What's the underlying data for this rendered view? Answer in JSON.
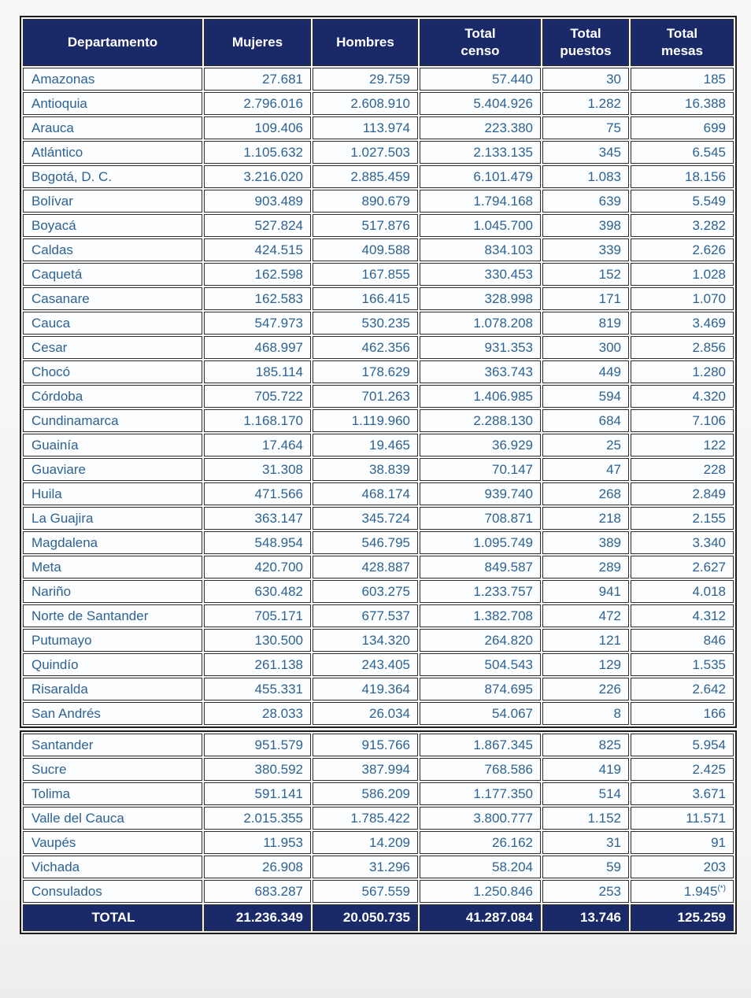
{
  "colors": {
    "header_bg": "#1a2a68",
    "header_text": "#ffffff",
    "cell_text": "#2d6292",
    "cell_bg": "#fbfdfe",
    "grid_line": "#2e2e2e",
    "outer_border": "#1d1d1d",
    "total_bg": "#1a2a68",
    "total_text": "#ffffff",
    "page_bg": "#f4f4f2"
  },
  "table": {
    "columns": [
      "Departamento",
      "Mujeres",
      "Hombres",
      "Total\ncenso",
      "Total\npuestos",
      "Total\nmesas"
    ],
    "footnote_marker": "(*)",
    "sections": [
      {
        "rows": [
          [
            "Amazonas",
            "27.681",
            "29.759",
            "57.440",
            "30",
            "185"
          ],
          [
            "Antioquia",
            "2.796.016",
            "2.608.910",
            "5.404.926",
            "1.282",
            "16.388"
          ],
          [
            "Arauca",
            "109.406",
            "113.974",
            "223.380",
            "75",
            "699"
          ],
          [
            "Atlántico",
            "1.105.632",
            "1.027.503",
            "2.133.135",
            "345",
            "6.545"
          ],
          [
            "Bogotá, D. C.",
            "3.216.020",
            "2.885.459",
            "6.101.479",
            "1.083",
            "18.156"
          ],
          [
            "Bolívar",
            "903.489",
            "890.679",
            "1.794.168",
            "639",
            "5.549"
          ],
          [
            "Boyacá",
            "527.824",
            "517.876",
            "1.045.700",
            "398",
            "3.282"
          ],
          [
            "Caldas",
            "424.515",
            "409.588",
            "834.103",
            "339",
            "2.626"
          ],
          [
            "Caquetá",
            "162.598",
            "167.855",
            "330.453",
            "152",
            "1.028"
          ],
          [
            "Casanare",
            "162.583",
            "166.415",
            "328.998",
            "171",
            "1.070"
          ],
          [
            "Cauca",
            "547.973",
            "530.235",
            "1.078.208",
            "819",
            "3.469"
          ],
          [
            "Cesar",
            "468.997",
            "462.356",
            "931.353",
            "300",
            "2.856"
          ],
          [
            "Chocó",
            "185.114",
            "178.629",
            "363.743",
            "449",
            "1.280"
          ],
          [
            "Córdoba",
            "705.722",
            "701.263",
            "1.406.985",
            "594",
            "4.320"
          ],
          [
            "Cundinamarca",
            "1.168.170",
            "1.119.960",
            "2.288.130",
            "684",
            "7.106"
          ],
          [
            "Guainía",
            "17.464",
            "19.465",
            "36.929",
            "25",
            "122"
          ],
          [
            "Guaviare",
            "31.308",
            "38.839",
            "70.147",
            "47",
            "228"
          ],
          [
            "Huila",
            "471.566",
            "468.174",
            "939.740",
            "268",
            "2.849"
          ],
          [
            "La Guajira",
            "363.147",
            "345.724",
            "708.871",
            "218",
            "2.155"
          ],
          [
            "Magdalena",
            "548.954",
            "546.795",
            "1.095.749",
            "389",
            "3.340"
          ],
          [
            "Meta",
            "420.700",
            "428.887",
            "849.587",
            "289",
            "2.627"
          ],
          [
            "Nariño",
            "630.482",
            "603.275",
            "1.233.757",
            "941",
            "4.018"
          ],
          [
            "Norte de Santander",
            "705.171",
            "677.537",
            "1.382.708",
            "472",
            "4.312"
          ],
          [
            "Putumayo",
            "130.500",
            "134.320",
            "264.820",
            "121",
            "846"
          ],
          [
            "Quindío",
            "261.138",
            "243.405",
            "504.543",
            "129",
            "1.535"
          ],
          [
            "Risaralda",
            "455.331",
            "419.364",
            "874.695",
            "226",
            "2.642"
          ],
          [
            "San Andrés",
            "28.033",
            "26.034",
            "54.067",
            "8",
            "166"
          ]
        ]
      },
      {
        "rows": [
          [
            "Santander",
            "951.579",
            "915.766",
            "1.867.345",
            "825",
            "5.954"
          ],
          [
            "Sucre",
            "380.592",
            "387.994",
            "768.586",
            "419",
            "2.425"
          ],
          [
            "Tolima",
            "591.141",
            "586.209",
            "1.177.350",
            "514",
            "3.671"
          ],
          [
            "Valle del Cauca",
            "2.015.355",
            "1.785.422",
            "3.800.777",
            "1.152",
            "11.571"
          ],
          [
            "Vaupés",
            "11.953",
            "14.209",
            "26.162",
            "31",
            "91"
          ],
          [
            "Vichada",
            "26.908",
            "31.296",
            "58.204",
            "59",
            "203"
          ],
          [
            "Consulados",
            "683.287",
            "567.559",
            "1.250.846",
            "253",
            "1.945(*)"
          ]
        ]
      }
    ],
    "total_row": [
      "TOTAL",
      "21.236.349",
      "20.050.735",
      "41.287.084",
      "13.746",
      "125.259"
    ]
  }
}
